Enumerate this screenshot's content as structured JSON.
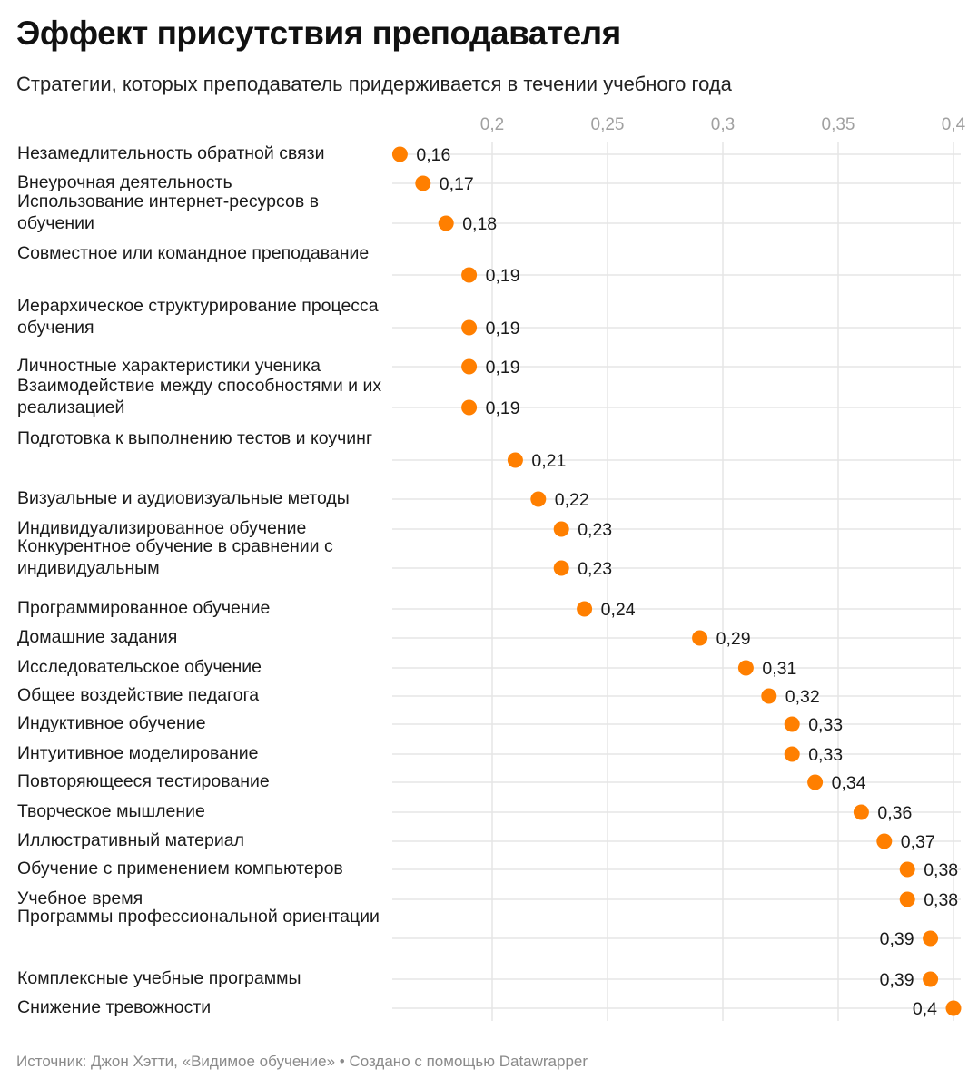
{
  "title": "Эффект присутствия преподавателя",
  "subtitle": "Стратегии, которых преподаватель придерживается в течении учебного года",
  "footer": "Источник: Джон Хэтти, «Видимое обучение» • Создано с помощью Datawrapper",
  "colors": {
    "dot": "#ff7f00",
    "grid": "#e5e5e5",
    "tick": "#a0a0a0"
  },
  "chart_data": {
    "type": "scatter",
    "title": "Эффект присутствия преподавателя",
    "xlabel": "",
    "ylabel": "",
    "xlim": [
      0.1567,
      0.403
    ],
    "xticks": [
      0.2,
      0.25,
      0.3,
      0.35,
      0.4
    ],
    "xtick_labels": [
      "0,2",
      "0,25",
      "0,3",
      "0,35",
      "0,4"
    ],
    "grid": true,
    "categories": [
      "Незамедлительность обратной связи",
      "Внеурочная деятельность",
      "Использование интернет-ресурсов в обучении",
      "Совместное или командное преподавание",
      "Иерархическое структурирование процесса обучения",
      "Личностные характеристики ученика",
      "Взаимодействие между способностями и их реализацией",
      "Подготовка к выполнению тестов и коучинг",
      "Визуальные и аудиовизуальные методы",
      "Индивидуализированное обучение",
      "Конкурентное обучение в сравнении с индивидуальным",
      "Программированное обучение",
      "Домашние задания",
      "Исследовательское обучение",
      "Общее воздействие педагога",
      "Индуктивное обучение",
      "Интуитивное моделирование",
      "Повторяющееся тестирование",
      "Творческое мышление",
      "Иллюстративный материал",
      "Обучение с применением компьютеров",
      "Учебное время",
      "Программы профессиональной ориентации",
      "Комплексные учебные программы",
      "Снижение тревожности"
    ],
    "values": [
      0.16,
      0.17,
      0.18,
      0.19,
      0.19,
      0.19,
      0.19,
      0.21,
      0.22,
      0.23,
      0.23,
      0.24,
      0.29,
      0.31,
      0.32,
      0.33,
      0.33,
      0.34,
      0.36,
      0.37,
      0.38,
      0.38,
      0.39,
      0.39,
      0.4
    ],
    "value_labels": [
      "0,16",
      "0,17",
      "0,18",
      "0,19",
      "0,19",
      "0,19",
      "0,19",
      "0,21",
      "0,22",
      "0,23",
      "0,23",
      "0,24",
      "0,29",
      "0,31",
      "0,32",
      "0,33",
      "0,33",
      "0,34",
      "0,36",
      "0,37",
      "0,38",
      "0,38",
      "0,39",
      "0,39",
      "0,4"
    ]
  }
}
